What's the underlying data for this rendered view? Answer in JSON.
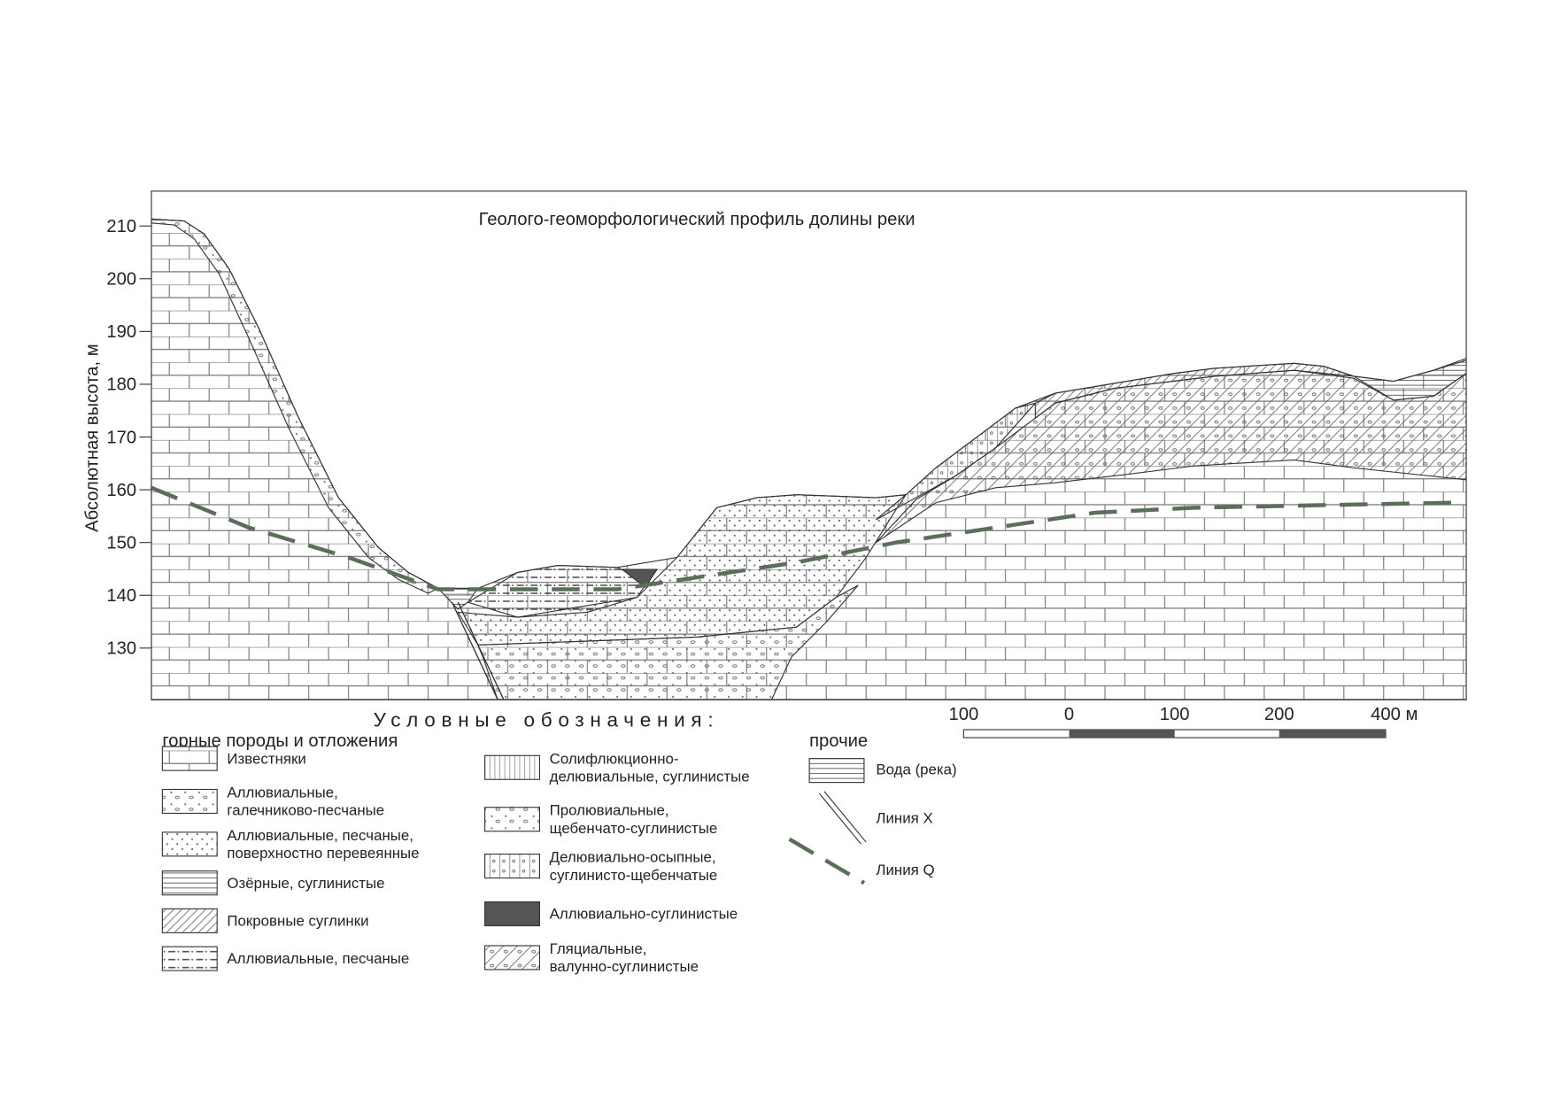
{
  "title": "Геолого-геоморфологический профиль долины реки",
  "y_axis": {
    "label": "Абсолютная высота, м",
    "ticks": [
      210,
      200,
      190,
      180,
      170,
      160,
      150,
      140,
      130
    ]
  },
  "scale": {
    "labels": [
      100,
      0,
      100,
      200,
      400
    ],
    "unit": "м"
  },
  "legend": {
    "heading": "Условные обозначения:",
    "rocks": {
      "title": "горные породы и отложения",
      "items": [
        [
          "Известняки"
        ],
        [
          "Аллювиальные,",
          "галечниково-песчаные"
        ],
        [
          "Аллювиальные, песчаные,",
          "поверхностно перевеянные"
        ],
        [
          "Озёрные, суглинистые"
        ],
        [
          "Покровные суглинки"
        ],
        [
          "Аллювиальные, песчаные"
        ]
      ]
    },
    "deposits": {
      "items": [
        [
          "Солифлюкционно-",
          "делювиальные, суглинистые"
        ],
        [
          "Пролювиальные,",
          "щебенчато-суглинистые"
        ],
        [
          "Делювиально-осыпные,",
          "суглинисто-щебенчатые"
        ],
        [
          "Аллювиально-суглинистые"
        ],
        [
          "Гляциальные,",
          "валунно-суглинистые"
        ]
      ]
    },
    "other": {
      "title": "прочие",
      "items": [
        "Вода (река)",
        "Линия X",
        "Линия Q"
      ]
    }
  }
}
